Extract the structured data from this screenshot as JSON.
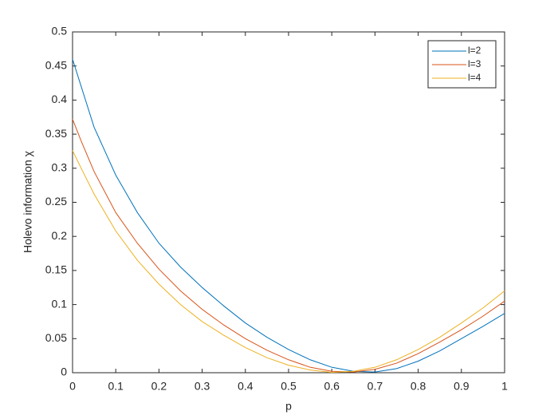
{
  "chart_data": {
    "type": "line",
    "xlabel": "p",
    "ylabel": "Holevo information χ",
    "x": [
      0,
      0.02,
      0.05,
      0.1,
      0.15,
      0.2,
      0.25,
      0.3,
      0.35,
      0.4,
      0.45,
      0.5,
      0.55,
      0.6,
      0.65,
      0.7,
      0.75,
      0.8,
      0.85,
      0.9,
      0.95,
      1
    ],
    "series": [
      {
        "name": "l=2",
        "color": "#0072bd",
        "values": [
          0.46,
          0.42,
          0.36,
          0.29,
          0.235,
          0.19,
          0.155,
          0.125,
          0.098,
          0.073,
          0.052,
          0.034,
          0.019,
          0.008,
          0.002,
          0.001,
          0.006,
          0.017,
          0.032,
          0.05,
          0.068,
          0.087
        ]
      },
      {
        "name": "l=3",
        "color": "#d95319",
        "values": [
          0.372,
          0.34,
          0.295,
          0.235,
          0.19,
          0.152,
          0.12,
          0.093,
          0.07,
          0.05,
          0.033,
          0.019,
          0.008,
          0.002,
          0.001,
          0.005,
          0.014,
          0.028,
          0.045,
          0.063,
          0.083,
          0.105
        ]
      },
      {
        "name": "l=4",
        "color": "#edb120",
        "values": [
          0.326,
          0.3,
          0.262,
          0.208,
          0.165,
          0.13,
          0.1,
          0.075,
          0.055,
          0.037,
          0.022,
          0.011,
          0.004,
          0.0005,
          0.002,
          0.008,
          0.019,
          0.034,
          0.052,
          0.073,
          0.095,
          0.12
        ]
      }
    ],
    "xlim": [
      0,
      1
    ],
    "xticks": [
      0,
      0.1,
      0.2,
      0.3,
      0.4,
      0.5,
      0.6,
      0.7,
      0.8,
      0.9,
      1
    ],
    "ylim": [
      0,
      0.5
    ],
    "yticks": [
      0,
      0.05,
      0.1,
      0.15,
      0.2,
      0.25,
      0.3,
      0.35,
      0.4,
      0.45,
      0.5
    ],
    "grid": false,
    "legend": "northeast"
  }
}
